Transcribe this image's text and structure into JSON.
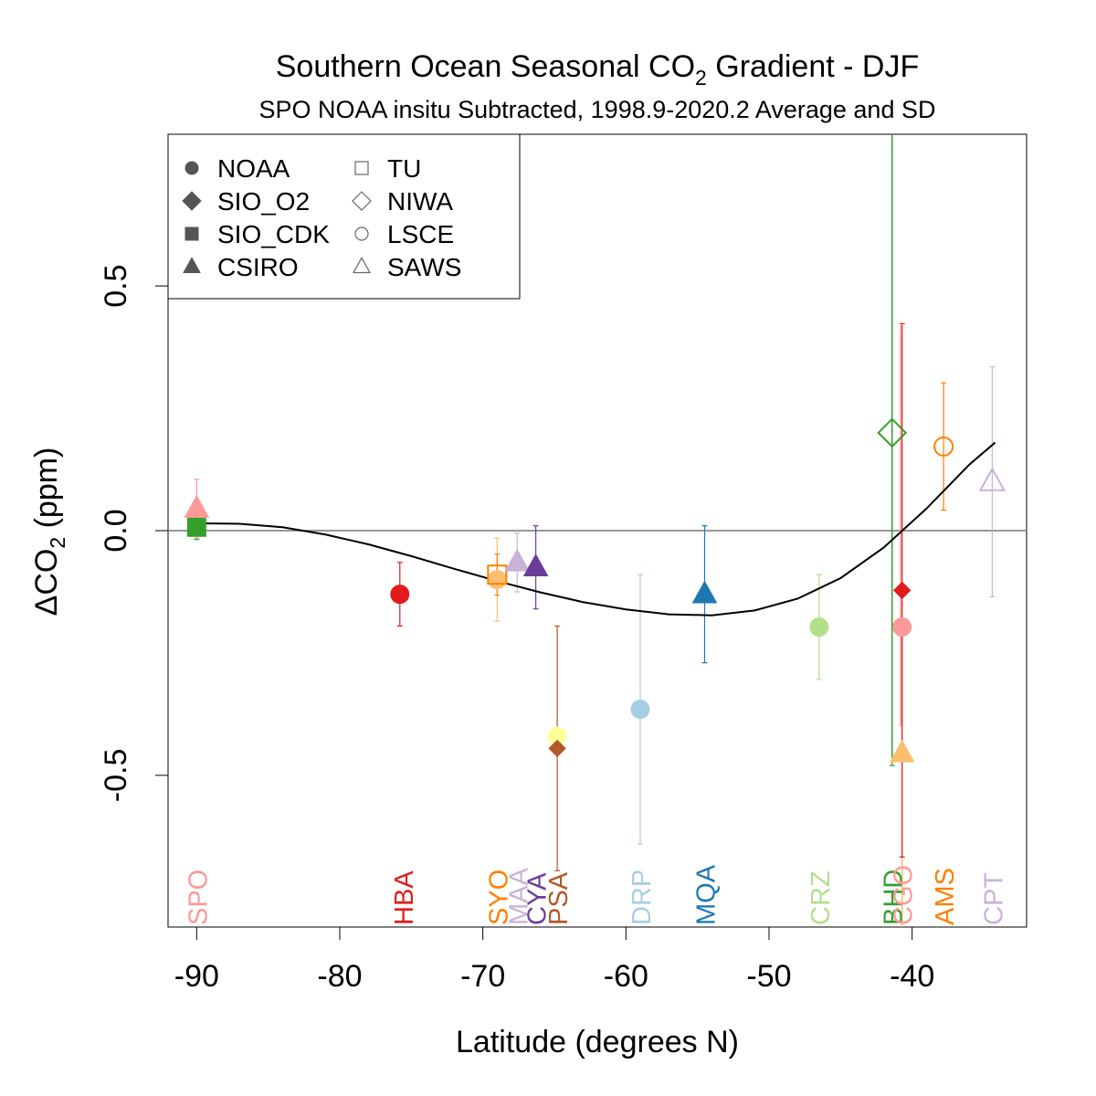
{
  "chart_data": {
    "type": "scatter",
    "title": {
      "main": "Southern Ocean Seasonal CO",
      "sub": "2",
      "rest": " Gradient - DJF"
    },
    "subtitle": "SPO NOAA insitu Subtracted, 1998.9-2020.2 Average and SD",
    "xlabel": "Latitude (degrees N)",
    "ylabel": {
      "prefix": "ΔCO",
      "sub": "2",
      "suffix": " (ppm)"
    },
    "xlim": [
      -92,
      -32
    ],
    "ylim": [
      -0.81,
      0.81
    ],
    "xticks": [
      -90,
      -80,
      -70,
      -60,
      -50,
      -40
    ],
    "yticks": [
      -0.5,
      0.0,
      0.5
    ],
    "ytick_labels": [
      "-0.5",
      "0.0",
      "0.5"
    ],
    "zero_line": true,
    "grid": false,
    "legend_placement": "top-left",
    "legend": [
      {
        "label": "NOAA",
        "shape": "circle",
        "filled": true
      },
      {
        "label": "SIO_O2",
        "shape": "diamond",
        "filled": true
      },
      {
        "label": "SIO_CDK",
        "shape": "square",
        "filled": true
      },
      {
        "label": "CSIRO",
        "shape": "triangle",
        "filled": true
      },
      {
        "label": "TU",
        "shape": "square",
        "filled": false
      },
      {
        "label": "NIWA",
        "shape": "diamond",
        "filled": false
      },
      {
        "label": "LSCE",
        "shape": "circle",
        "filled": false
      },
      {
        "label": "SAWS",
        "shape": "triangle",
        "filled": false
      }
    ],
    "fit_curve": {
      "x": [
        -90,
        -87,
        -84,
        -81,
        -78,
        -75,
        -72,
        -69,
        -66,
        -63,
        -60,
        -57,
        -54,
        -51,
        -48,
        -45,
        -42,
        -39,
        -36,
        -34.2
      ],
      "y": [
        0.015,
        0.014,
        0.007,
        -0.008,
        -0.028,
        -0.052,
        -0.078,
        -0.103,
        -0.126,
        -0.146,
        -0.161,
        -0.171,
        -0.173,
        -0.163,
        -0.139,
        -0.097,
        -0.035,
        0.045,
        0.135,
        0.18
      ]
    },
    "points": [
      {
        "lab": "SIO_CDK",
        "x": -90.0,
        "y": 0.007,
        "sd": 0.025,
        "shape": "square",
        "filled": true,
        "color": "#33a02c",
        "size": 20
      },
      {
        "lab": "CSIRO",
        "x": -90.0,
        "y": 0.045,
        "sd": 0.06,
        "shape": "triangle",
        "filled": true,
        "color": "#fb9a99",
        "size": 26
      },
      {
        "lab": "NOAA",
        "x": -75.8,
        "y": -0.13,
        "sd": 0.065,
        "shape": "circle",
        "filled": true,
        "color": "#e31a1c",
        "size": 20
      },
      {
        "lab": "NOAA",
        "x": -69.0,
        "y": -0.1,
        "sd": 0.085,
        "shape": "circle",
        "filled": true,
        "color": "#fdbf6f",
        "size": 20
      },
      {
        "lab": "TU",
        "x": -69.0,
        "y": -0.09,
        "sd": 0.042,
        "shape": "square",
        "filled": false,
        "color": "#ff7f00",
        "size": 20
      },
      {
        "lab": "CSIRO",
        "x": -67.6,
        "y": -0.065,
        "sd": 0.06,
        "shape": "triangle",
        "filled": true,
        "color": "#cab2d6",
        "size": 26
      },
      {
        "lab": "CSIRO",
        "x": -66.3,
        "y": -0.075,
        "sd": 0.085,
        "shape": "triangle",
        "filled": true,
        "color": "#6a3d9a",
        "size": 26
      },
      {
        "lab": "NOAA",
        "x": -64.8,
        "y": -0.42,
        "sd": 0.0,
        "shape": "circle",
        "filled": true,
        "color": "#ffff99",
        "size": 20
      },
      {
        "lab": "SIO_O2",
        "x": -64.8,
        "y": -0.445,
        "sd": 0.25,
        "shape": "diamond",
        "filled": true,
        "color": "#b15928",
        "size": 18
      },
      {
        "lab": "NOAA",
        "x": -59.0,
        "y": -0.365,
        "sd": 0.275,
        "shape": "circle",
        "filled": true,
        "color": "#a6cee3",
        "size": 20
      },
      {
        "lab": "CSIRO",
        "x": -54.5,
        "y": -0.13,
        "sd": 0.14,
        "shape": "triangle",
        "filled": true,
        "color": "#1f78b4",
        "size": 26
      },
      {
        "lab": "NOAA",
        "x": -46.5,
        "y": -0.197,
        "sd": 0.107,
        "shape": "circle",
        "filled": true,
        "color": "#b2df8a",
        "size": 20
      },
      {
        "lab": "NIWA",
        "x": -41.4,
        "y": 0.2,
        "sd": 0.68,
        "shape": "diamond",
        "filled": false,
        "color": "#33a02c",
        "size": 30
      },
      {
        "lab": "SIO_O2",
        "x": -40.7,
        "y": -0.122,
        "sd": 0.545,
        "shape": "diamond",
        "filled": true,
        "color": "#e31a1c",
        "size": 18
      },
      {
        "lab": "NOAA",
        "x": -40.7,
        "y": -0.197,
        "sd": 0.0,
        "shape": "circle",
        "filled": true,
        "color": "#fb9a99",
        "size": 20
      },
      {
        "lab": "CSIRO",
        "x": -40.7,
        "y": -0.455,
        "sd": 0.0,
        "shape": "triangle",
        "filled": true,
        "color": "#fdbf6f",
        "size": 26
      },
      {
        "lab": "LSCE",
        "x": -37.8,
        "y": 0.172,
        "sd": 0.13,
        "shape": "circle",
        "filled": false,
        "color": "#ff7f00",
        "size": 20
      },
      {
        "lab": "SAWS",
        "x": -34.4,
        "y": 0.1,
        "sd": 0.235,
        "shape": "triangle",
        "filled": false,
        "color": "#cab2d6",
        "size": 26
      }
    ],
    "extra_error_bars": [
      {
        "x": -41.4,
        "ylo": -0.46,
        "yhi": 0.81,
        "color": "#33a02c"
      },
      {
        "x": -40.7,
        "ylo": -0.81,
        "yhi": -0.197,
        "color": "#fb9a99"
      },
      {
        "x": -40.7,
        "ylo": -0.81,
        "yhi": -0.455,
        "color": "#fdbf6f"
      },
      {
        "x": -40.8,
        "ylo": -0.4,
        "yhi": 0.42,
        "color": "#fb9a99"
      }
    ],
    "stations": [
      {
        "code": "SPO",
        "x": -90.0,
        "color": "#fb9a99"
      },
      {
        "code": "HBA",
        "x": -75.6,
        "color": "#e31a1c"
      },
      {
        "code": "SYO",
        "x": -69.0,
        "color": "#ff7f00"
      },
      {
        "code": "MAA",
        "x": -67.6,
        "color": "#cab2d6"
      },
      {
        "code": "CYA",
        "x": -66.3,
        "color": "#6a3d9a"
      },
      {
        "code": "PSA",
        "x": -64.8,
        "color": "#b15928"
      },
      {
        "code": "DRP",
        "x": -59.0,
        "color": "#a6cee3"
      },
      {
        "code": "MQA",
        "x": -54.5,
        "color": "#1f78b4"
      },
      {
        "code": "CRZ",
        "x": -46.5,
        "color": "#b2df8a"
      },
      {
        "code": "BHD",
        "x": -41.4,
        "color": "#33a02c"
      },
      {
        "code": "CGO",
        "x": -40.7,
        "color": "#fb9a99"
      },
      {
        "code": "AMS",
        "x": -37.8,
        "color": "#ff7f00"
      },
      {
        "code": "CPT",
        "x": -34.4,
        "color": "#cab2d6"
      }
    ]
  }
}
